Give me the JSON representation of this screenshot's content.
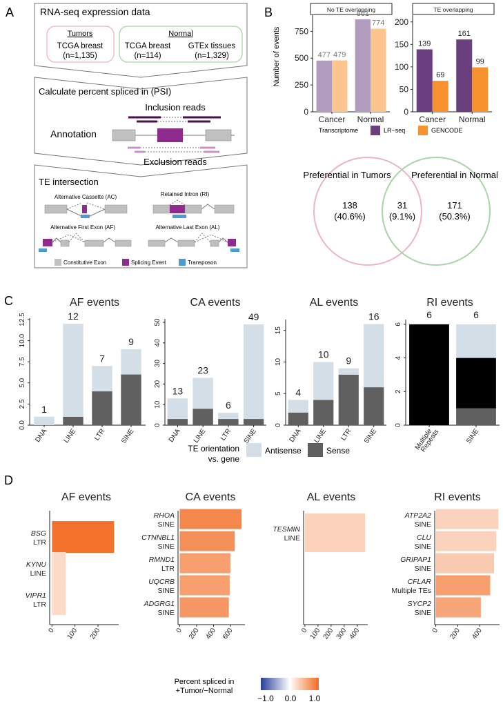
{
  "panels": {
    "a": "A",
    "b": "B",
    "c": "C",
    "d": "D"
  },
  "panelA": {
    "title": "RNA-seq expression data",
    "tumors": {
      "head": "Tumors",
      "l1": "TCGA breast",
      "l2": "(n=1,135)"
    },
    "normal": {
      "head": "Normal",
      "c1l1": "TCGA breast",
      "c1l2": "(n=114)",
      "c2l1": "GTEx tissues",
      "c2l2": "(n=1,329)"
    },
    "psi_title": "Calculate percent spliced in (PSI)",
    "inclusion": "Inclusion reads",
    "annotation": "Annotation",
    "exclusion": "Exclusion reads",
    "te_title": "TE intersection",
    "ac": "Alternative Cassette (AC)",
    "ri": "Retained Intron (RI)",
    "af": "Alternative First Exon (AF)",
    "al": "Alternative Last Exon (AL)",
    "legend": {
      "constitutive": "Constitutive Exon",
      "splicing": "Splicing Event",
      "transposon": "Transposon"
    }
  },
  "colors": {
    "lr_nte": "#b09cbd",
    "gencode_nte": "#fcc48f",
    "lr_te": "#6a3f80",
    "gencode_te": "#f7922f",
    "antisense": "#d4dee6",
    "sense": "#606060",
    "multiple": "#000000",
    "exon": "#c0c0c0",
    "event": "#8e2c8e",
    "te": "#4b9bd0",
    "pink": "#eeb4c6",
    "green": "#a8d5a8"
  },
  "panelB": {
    "ylabel": "Number of events",
    "legend_title": "Transcriptome",
    "legend_lr": "LR−seq",
    "legend_gencode": "GENCODE",
    "venn": {
      "left_title": "Preferential in Tumors",
      "right_title": "Preferential in Normal",
      "left_n": "138",
      "left_p": "(40.6%)",
      "mid_n": "31",
      "mid_p": "(9.1%)",
      "right_n": "171",
      "right_p": "(50.3%)"
    }
  },
  "panelC": {
    "legend_title_l1": "TE orientation",
    "legend_title_l2": "vs. gene",
    "legend_antisense": "Antisense",
    "legend_sense": "Sense"
  },
  "panelD": {
    "legend_title_l1": "Percent spliced in",
    "legend_title_l2": "+Tumor/−Normal",
    "legend_ticks": [
      "−1.0",
      "0.0",
      "1.0"
    ]
  },
  "chart_data": [
    {
      "id": "b_nte",
      "type": "bar",
      "title": "No TE overlapping",
      "categories": [
        "Cancer",
        "Normal"
      ],
      "series": [
        {
          "name": "LR−seq",
          "values": [
            477,
            861
          ]
        },
        {
          "name": "GENCODE",
          "values": [
            479,
            774
          ]
        }
      ],
      "ylim": [
        0,
        900
      ],
      "yticks": [
        0,
        250,
        500,
        750
      ],
      "ylabel": "Number of events"
    },
    {
      "id": "b_te",
      "type": "bar",
      "title": "TE overlapping",
      "categories": [
        "Cancer",
        "Normal"
      ],
      "series": [
        {
          "name": "LR−seq",
          "values": [
            139,
            161
          ]
        },
        {
          "name": "GENCODE",
          "values": [
            69,
            99
          ]
        }
      ],
      "ylim": [
        0,
        215
      ],
      "yticks": [
        0,
        50,
        100,
        150,
        200
      ]
    },
    {
      "id": "c_af",
      "type": "bar",
      "title": "AF events",
      "categories": [
        "DNA",
        "LINE",
        "LTR",
        "SINE"
      ],
      "series": [
        {
          "name": "Sense",
          "values": [
            0,
            1,
            4,
            6
          ]
        },
        {
          "name": "Antisense",
          "values": [
            1,
            11,
            3,
            3
          ]
        }
      ],
      "totals": [
        "1",
        "12",
        "7",
        "9"
      ],
      "ylim": [
        0,
        12.5
      ],
      "yticks": [
        "0.0",
        "2.5",
        "5.0",
        "7.5",
        "10.0",
        "12.5"
      ]
    },
    {
      "id": "c_ca",
      "type": "bar",
      "title": "CA events",
      "categories": [
        "DNA",
        "LINE",
        "LTR",
        "SINE"
      ],
      "series": [
        {
          "name": "Sense",
          "values": [
            3,
            8,
            3,
            3
          ]
        },
        {
          "name": "Antisense",
          "values": [
            10,
            15,
            3,
            46
          ]
        }
      ],
      "totals": [
        "13",
        "23",
        "6",
        "49"
      ],
      "ylim": [
        0,
        51
      ],
      "yticks": [
        "0",
        "10",
        "20",
        "30",
        "40",
        "50"
      ]
    },
    {
      "id": "c_al",
      "type": "bar",
      "title": "AL events",
      "categories": [
        "DNA",
        "LINE",
        "LTR",
        "SINE"
      ],
      "series": [
        {
          "name": "Sense",
          "values": [
            2,
            4,
            8,
            6
          ]
        },
        {
          "name": "Antisense",
          "values": [
            2,
            6,
            1,
            10
          ]
        }
      ],
      "totals": [
        "4",
        "10",
        "9",
        "16"
      ],
      "ylim": [
        0,
        16.5
      ],
      "yticks": [
        "0",
        "5",
        "10",
        "15"
      ]
    },
    {
      "id": "c_ri",
      "type": "bar",
      "title": "RI events",
      "categories": [
        "Multiple Repeats",
        "SINE"
      ],
      "series": [
        {
          "name": "Sense",
          "values": [
            0,
            1
          ]
        },
        {
          "name": "Multiple",
          "values": [
            6,
            3
          ]
        },
        {
          "name": "Antisense",
          "values": [
            0,
            2
          ]
        }
      ],
      "totals": [
        "6",
        "6"
      ],
      "ylim": [
        0,
        6.2
      ],
      "yticks": [
        "0",
        "2",
        "4",
        "6"
      ]
    },
    {
      "id": "d_af",
      "type": "bar",
      "orientation": "horizontal",
      "title": "AF events",
      "labels": [
        {
          "gene": "BSG",
          "te": "LTR"
        },
        {
          "gene": "KYNU",
          "te": "LINE"
        },
        {
          "gene": "VIPR1",
          "te": "LTR"
        }
      ],
      "values": [
        270,
        60,
        60
      ],
      "psi": [
        0.95,
        0.25,
        0.25
      ],
      "xlim": [
        -10,
        290
      ],
      "xticks": [
        0,
        100,
        200
      ]
    },
    {
      "id": "d_ca",
      "type": "bar",
      "orientation": "horizontal",
      "title": "CA events",
      "labels": [
        {
          "gene": "RHOA",
          "te": "SINE"
        },
        {
          "gene": "CTNNBL1",
          "te": "SINE"
        },
        {
          "gene": "RMND1",
          "te": "LTR"
        },
        {
          "gene": "UQCRB",
          "te": "SINE"
        },
        {
          "gene": "ADGRG1",
          "te": "SINE"
        }
      ],
      "values": [
        730,
        650,
        600,
        590,
        580
      ],
      "psi": [
        0.8,
        0.75,
        0.65,
        0.65,
        0.7
      ],
      "xlim": [
        -20,
        770
      ],
      "xticks": [
        0,
        200,
        400,
        600
      ]
    },
    {
      "id": "d_al",
      "type": "bar",
      "orientation": "horizontal",
      "title": "AL events",
      "labels": [
        {
          "gene": "TESMIN",
          "te": "LINE"
        }
      ],
      "values": [
        460
      ],
      "psi": [
        0.3
      ],
      "xlim": [
        -10,
        480
      ],
      "xticks": [
        0,
        100,
        200,
        300,
        400
      ]
    },
    {
      "id": "d_ri",
      "type": "bar",
      "orientation": "horizontal",
      "title": "RI events",
      "labels": [
        {
          "gene": "ATP2A2",
          "te": "SINE"
        },
        {
          "gene": "CLU",
          "te": "SINE"
        },
        {
          "gene": "GRIPAP1",
          "te": "SINE"
        },
        {
          "gene": "CFLAR",
          "te": "Multiple TEs"
        },
        {
          "gene": "SYCP2",
          "te": "SINE"
        }
      ],
      "values": [
        570,
        550,
        530,
        495,
        410
      ],
      "psi": [
        0.3,
        0.3,
        0.35,
        0.65,
        0.6
      ],
      "xlim": [
        -10,
        580
      ],
      "xticks": [
        0,
        200,
        400
      ]
    }
  ]
}
